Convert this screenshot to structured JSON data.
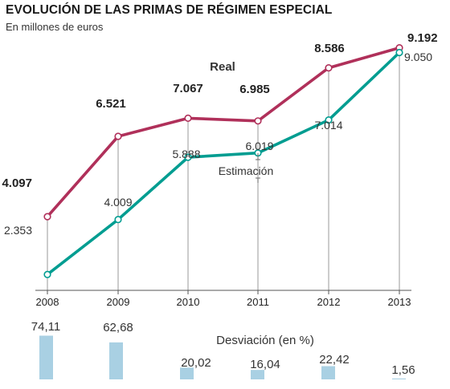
{
  "title": "EVOLUCIÓN DE LAS PRIMAS DE RÉGIMEN ESPECIAL",
  "subtitle": "En millones de euros",
  "colors": {
    "real": "#b0305a",
    "estimacion": "#009d91",
    "bars": "#a9d0e3",
    "axis": "#555555"
  },
  "chart_data": [
    {
      "type": "line",
      "x": [
        "2008",
        "2009",
        "2010",
        "2011",
        "2012",
        "2013"
      ],
      "series": [
        {
          "name": "Real",
          "values": [
            4097,
            6521,
            7067,
            6985,
            8586,
            9192
          ],
          "labels": [
            "4.097",
            "6.521",
            "7.067",
            "6.985",
            "8.586",
            "9.192"
          ]
        },
        {
          "name": "Estimación",
          "values": [
            2353,
            4009,
            5888,
            6019,
            7014,
            9050
          ],
          "labels": [
            "2.353",
            "4.009",
            "5.888",
            "6.019",
            "7.014",
            "9.050"
          ]
        }
      ],
      "ylim": [
        0,
        9500
      ],
      "grid": false
    },
    {
      "type": "bar",
      "title": "Desviación (en %)",
      "categories": [
        "2008",
        "2009",
        "2010",
        "2011",
        "2012",
        "2013"
      ],
      "values": [
        74.11,
        62.68,
        20.02,
        16.04,
        22.42,
        1.56
      ],
      "labels": [
        "74,11",
        "62,68",
        "20,02",
        "16,04",
        "22,42",
        "1,56"
      ]
    }
  ]
}
